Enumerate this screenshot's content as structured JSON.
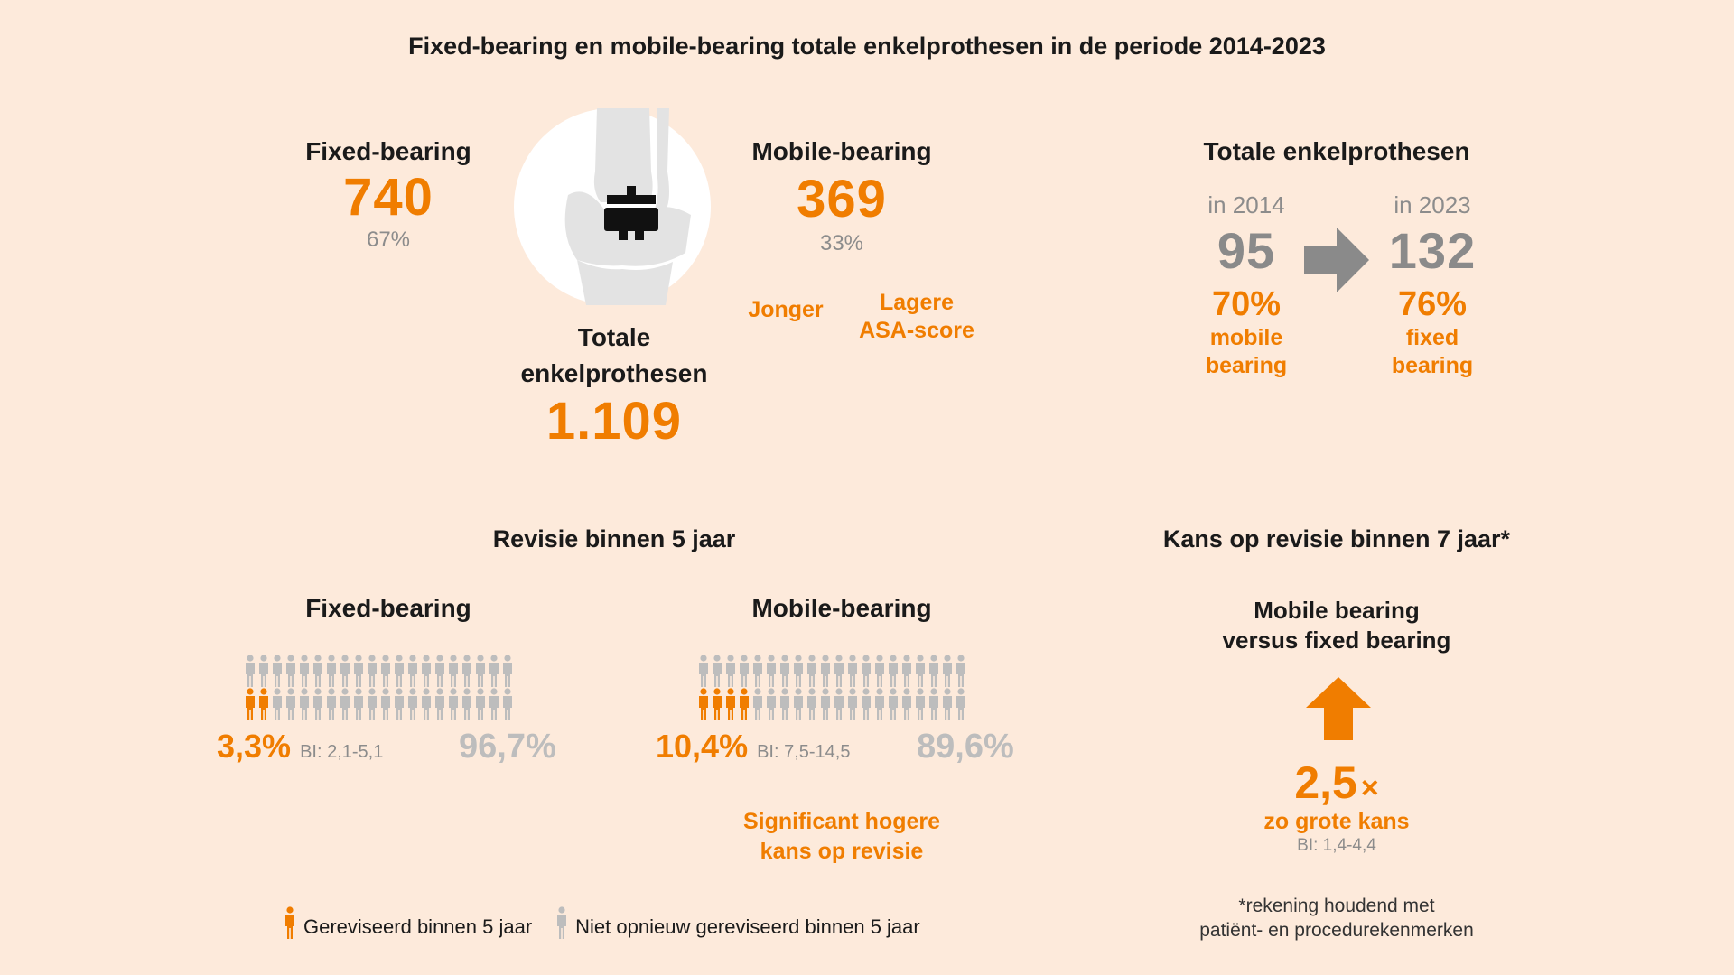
{
  "title": "Fixed-bearing en mobile-bearing totale enkelprothesen in de periode 2014-2023",
  "top": {
    "fixed": {
      "label": "Fixed-bearing",
      "count": "740",
      "pct": "67%"
    },
    "mobile": {
      "label": "Mobile-bearing",
      "count": "369",
      "pct": "33%"
    },
    "mobile_traits": {
      "younger": "Jonger",
      "asa_line1": "Lagere",
      "asa_line2": "ASA-score"
    },
    "total": {
      "label_line1": "Totale",
      "label_line2": "enkelprothesen",
      "count": "1.109"
    }
  },
  "trend": {
    "title": "Totale enkelprothesen",
    "from": {
      "label": "in 2014",
      "count": "95",
      "pct": "70%",
      "desc_line1": "mobile",
      "desc_line2": "bearing"
    },
    "to": {
      "label": "in 2023",
      "count": "132",
      "pct": "76%",
      "desc_line1": "fixed",
      "desc_line2": "bearing"
    }
  },
  "revision5": {
    "title": "Revisie binnen 5 jaar",
    "fixed": {
      "label": "Fixed-bearing",
      "revised_pct": "3,3%",
      "ci": "BI: 2,1-5,1",
      "not_revised_pct": "96,7%",
      "revised_icons": 2,
      "total_icons": 40
    },
    "mobile": {
      "label": "Mobile-bearing",
      "revised_pct": "10,4%",
      "ci": "BI: 7,5-14,5",
      "not_revised_pct": "89,6%",
      "revised_icons": 4,
      "total_icons": 40
    },
    "note_line1": "Significant hogere",
    "note_line2": "kans op revisie"
  },
  "revision7": {
    "title": "Kans op revisie binnen 7 jaar*",
    "subtitle_line1": "Mobile bearing",
    "subtitle_line2": "versus fixed bearing",
    "factor": "2,5",
    "factor_symbol": "×",
    "desc": "zo grote kans",
    "ci": "BI: 1,4-4,4",
    "footnote_line1": "*rekening houdend met",
    "footnote_line2": "patiënt- en procedurekenmerken"
  },
  "legend": {
    "revised": "Gereviseerd binnen 5 jaar",
    "not_revised": "Niet opnieuw gereviseerd binnen 5 jaar"
  },
  "colors": {
    "accent": "#f07d00",
    "grey": "#bdbdbd",
    "background": "#fdeadb"
  }
}
